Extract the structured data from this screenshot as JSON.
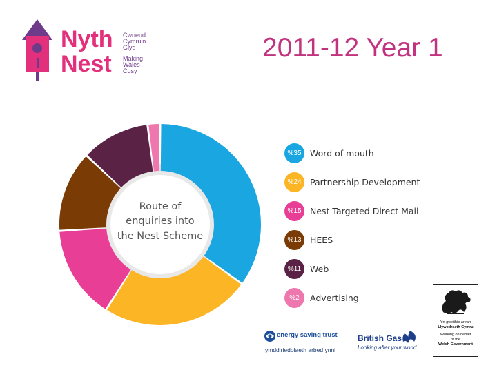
{
  "title": "2011-12   Year 1",
  "colors": {
    "title": "#c2337f",
    "brand_pink": "#e2307c",
    "brand_purple": "#6e3a8a",
    "donut_shadow": "#e8e8e8"
  },
  "logo": {
    "line1": "Nyth",
    "line2": "Nest",
    "welsh_tagline": [
      "Cwneud",
      "Cymru'n",
      "Glyd"
    ],
    "english_tagline": [
      "Making",
      "Wales",
      "Cosy"
    ]
  },
  "chart_data": {
    "type": "pie",
    "center_label": [
      "Route of",
      "enquiries into",
      "the Nest Scheme"
    ],
    "categories": [
      "Word of mouth",
      "Partnership Development",
      "Nest Targeted Direct Mail",
      "HEES",
      "Web",
      "Advertising"
    ],
    "values": [
      35,
      24,
      15,
      13,
      11,
      2
    ],
    "value_labels": [
      "%35",
      "%24",
      "%15",
      "%13",
      "%11",
      "%2"
    ],
    "colors": [
      "#1aa7e1",
      "#fbb525",
      "#e83e95",
      "#7a3b05",
      "#5a2245",
      "#ee77ae"
    ],
    "legend_position": "right"
  },
  "footer": {
    "est_name": "energy saving trust",
    "est_welsh": "ymddiriedolaeth arbed ynni",
    "bg_name": "British Gas",
    "bg_tagline": "Looking after your world",
    "wg_lines": [
      "Yn gweithio ar ran",
      "Llywodraeth Cymru",
      "Working on behalf",
      "of the",
      "Welsh Government"
    ]
  }
}
